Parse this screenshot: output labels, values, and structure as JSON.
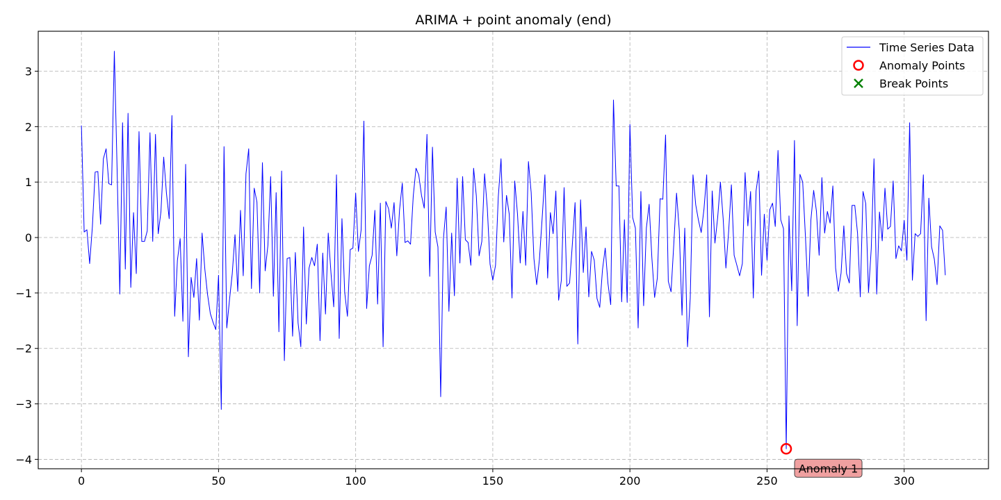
{
  "chart_data": {
    "type": "line",
    "title": "ARIMA + point anomaly (end)",
    "xlabel": "",
    "ylabel": "",
    "xlim": [
      -15.75,
      330.75
    ],
    "ylim": [
      -4.17,
      3.72
    ],
    "xticks": [
      0,
      50,
      100,
      150,
      200,
      250,
      300
    ],
    "yticks": [
      -4,
      -3,
      -2,
      -1,
      0,
      1,
      2,
      3
    ],
    "grid": true,
    "legend_position": "top-right",
    "colors": {
      "series": "#0000ff",
      "anomaly": "#ff0000",
      "break": "#008000",
      "annotation_bg": "#f0a0a0"
    },
    "legend": [
      {
        "label": "Time Series Data",
        "marker": "line"
      },
      {
        "label": "Anomaly Points",
        "marker": "circle"
      },
      {
        "label": "Break Points",
        "marker": "x"
      }
    ],
    "series": [
      {
        "name": "Time Series Data",
        "x_start": 0,
        "values": [
          2.02,
          0.1,
          0.14,
          -0.47,
          0.2,
          1.18,
          1.19,
          0.24,
          1.42,
          1.6,
          0.97,
          0.95,
          3.36,
          1.25,
          -1.02,
          2.07,
          -0.57,
          2.24,
          -0.9,
          0.45,
          -0.65,
          1.91,
          -0.07,
          -0.07,
          0.12,
          1.89,
          -0.07,
          1.86,
          0.07,
          0.47,
          1.45,
          0.8,
          0.34,
          2.2,
          -1.42,
          -0.41,
          -0.02,
          -1.51,
          1.32,
          -2.15,
          -0.72,
          -1.08,
          -0.38,
          -1.49,
          0.08,
          -0.57,
          -1.03,
          -1.37,
          -1.53,
          -1.66,
          -0.68,
          -3.1,
          1.64,
          -1.63,
          -1.12,
          -0.65,
          0.05,
          -0.97,
          0.49,
          -0.69,
          1.15,
          1.6,
          -0.92,
          0.89,
          0.64,
          -1.0,
          1.35,
          -0.6,
          -0.14,
          1.1,
          -1.06,
          0.81,
          -1.7,
          1.2,
          -2.22,
          -0.38,
          -0.36,
          -1.78,
          -0.27,
          -1.54,
          -1.97,
          0.19,
          -1.56,
          -0.55,
          -0.36,
          -0.51,
          -0.12,
          -1.86,
          -0.28,
          -1.38,
          0.08,
          -0.64,
          -1.25,
          1.13,
          -1.82,
          0.34,
          -0.99,
          -1.42,
          -0.22,
          -0.19,
          0.8,
          -0.25,
          0.14,
          2.1,
          -1.28,
          -0.51,
          -0.32,
          0.49,
          -1.2,
          0.62,
          -1.97,
          0.65,
          0.52,
          0.17,
          0.63,
          -0.33,
          0.5,
          0.98,
          -0.09,
          -0.06,
          -0.12,
          0.75,
          1.25,
          1.13,
          0.76,
          0.53,
          1.86,
          -0.7,
          1.63,
          0.1,
          -0.17,
          -2.87,
          -0.02,
          0.55,
          -1.33,
          0.08,
          -1.05,
          1.07,
          -0.46,
          1.1,
          -0.04,
          -0.09,
          -0.5,
          1.25,
          0.75,
          -0.33,
          -0.07,
          1.15,
          0.53,
          -0.48,
          -0.77,
          -0.5,
          0.73,
          1.42,
          -0.08,
          0.76,
          0.42,
          -1.09,
          1.02,
          0.43,
          -0.46,
          0.47,
          -0.5,
          1.37,
          0.81,
          -0.38,
          -0.85,
          -0.4,
          0.35,
          1.13,
          -0.73,
          0.45,
          0.07,
          0.84,
          -1.13,
          -0.77,
          0.9,
          -0.88,
          -0.82,
          -0.13,
          0.63,
          -1.92,
          0.68,
          -0.63,
          0.19,
          -1.07,
          -0.25,
          -0.41,
          -1.1,
          -1.26,
          -0.58,
          -0.19,
          -0.83,
          -1.21,
          2.48,
          0.93,
          0.93,
          -1.16,
          0.32,
          -1.17,
          2.04,
          0.36,
          0.17,
          -1.63,
          0.83,
          -1.23,
          0.17,
          0.6,
          -0.36,
          -1.08,
          -0.73,
          0.7,
          0.69,
          1.85,
          -0.79,
          -0.98,
          -0.12,
          0.8,
          0.13,
          -1.4,
          0.17,
          -1.97,
          -1.09,
          1.13,
          0.59,
          0.31,
          0.09,
          0.51,
          1.13,
          -1.43,
          0.84,
          -0.1,
          0.36,
          1.0,
          0.34,
          -0.55,
          0.11,
          0.95,
          -0.32,
          -0.5,
          -0.69,
          -0.47,
          1.17,
          0.21,
          0.83,
          -1.09,
          0.84,
          1.2,
          -0.68,
          0.42,
          -0.41,
          0.5,
          0.62,
          0.2,
          1.57,
          0.32,
          0.16,
          -3.81,
          0.39,
          -0.96,
          1.75,
          -1.59,
          1.14,
          1.0,
          0.02,
          -1.06,
          0.32,
          0.85,
          0.48,
          -0.32,
          1.08,
          0.08,
          0.47,
          0.26,
          0.93,
          -0.55,
          -0.97,
          -0.64,
          0.21,
          -0.65,
          -0.82,
          0.58,
          0.58,
          0.08,
          -1.07,
          0.83,
          0.61,
          -0.99,
          -0.2,
          1.42,
          -1.02,
          0.46,
          -0.06,
          0.89,
          0.15,
          0.2,
          1.02,
          -0.38,
          -0.15,
          -0.24,
          0.31,
          -0.41,
          2.07,
          -0.77,
          0.07,
          0.02,
          0.07,
          1.13,
          -1.5,
          0.71,
          -0.17,
          -0.39,
          -0.85,
          0.21,
          0.13,
          -0.68
        ]
      }
    ],
    "anomaly_points": [
      {
        "x": 257,
        "y": -3.81,
        "label": "Anomaly 1"
      }
    ],
    "break_points": []
  }
}
